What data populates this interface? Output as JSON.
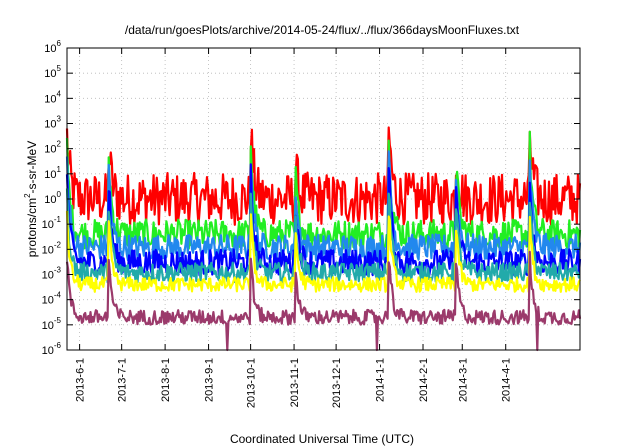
{
  "chart_data": {
    "type": "line",
    "title": "/data/run/goesPlots/archive/2014-05-24/flux/../flux/366daysMoonFluxes.txt",
    "xlabel": "Coordinated Universal Time (UTC)",
    "ylabel": {
      "pre": "protons/cm",
      "sup": "2",
      "post": "-s-sr-MeV"
    },
    "y_scale": "log",
    "ylim": [
      1e-06,
      1000000.0
    ],
    "y_ticks": [
      {
        "base": "10",
        "exp": "-6",
        "value": 1e-06
      },
      {
        "base": "10",
        "exp": "-5",
        "value": 1e-05
      },
      {
        "base": "10",
        "exp": "-4",
        "value": 0.0001
      },
      {
        "base": "10",
        "exp": "-3",
        "value": 0.001
      },
      {
        "base": "10",
        "exp": "-2",
        "value": 0.01
      },
      {
        "base": "10",
        "exp": "-1",
        "value": 0.1
      },
      {
        "base": "10",
        "exp": "0",
        "value": 1
      },
      {
        "base": "10",
        "exp": "1",
        "value": 10
      },
      {
        "base": "10",
        "exp": "2",
        "value": 100
      },
      {
        "base": "10",
        "exp": "3",
        "value": 1000
      },
      {
        "base": "10",
        "exp": "4",
        "value": 10000
      },
      {
        "base": "10",
        "exp": "5",
        "value": 100000
      },
      {
        "base": "10",
        "exp": "6",
        "value": 1000000
      }
    ],
    "xlim": [
      "2013-05-23",
      "2014-05-24"
    ],
    "x_ticks": [
      "2013-6-1",
      "2013-7-1",
      "2013-8-1",
      "2013-9-1",
      "2013-10-1",
      "2013-11-1",
      "2013-12-1",
      "2014-1-1",
      "2014-2-1",
      "2014-3-1",
      "2014-4-1"
    ],
    "grid": true,
    "colors": {
      "red": "#ff0000",
      "green": "#22ee22",
      "lightblue": "#2288ee",
      "blue": "#0000ff",
      "teal": "#22aaaa",
      "yellow": "#ffff00",
      "purple": "#9b3a6b"
    },
    "events": [
      {
        "date": "2013-05-23",
        "peak": 300
      },
      {
        "date": "2013-06-22",
        "peak": 80
      },
      {
        "date": "2013-10-01",
        "peak": 900
      },
      {
        "date": "2013-11-02",
        "peak": 20
      },
      {
        "date": "2014-01-08",
        "peak": 300
      },
      {
        "date": "2014-02-25",
        "peak": 25
      },
      {
        "date": "2014-04-18",
        "peak": 800
      }
    ],
    "series": [
      {
        "color": "red",
        "baseline": 1.0
      },
      {
        "color": "green",
        "baseline": 0.04
      },
      {
        "color": "lightblue",
        "baseline": 0.012
      },
      {
        "color": "blue",
        "baseline": 0.003
      },
      {
        "color": "teal",
        "baseline": 0.0012
      },
      {
        "color": "yellow",
        "baseline": 0.0004
      },
      {
        "color": "purple",
        "baseline": 2e-05
      }
    ]
  }
}
